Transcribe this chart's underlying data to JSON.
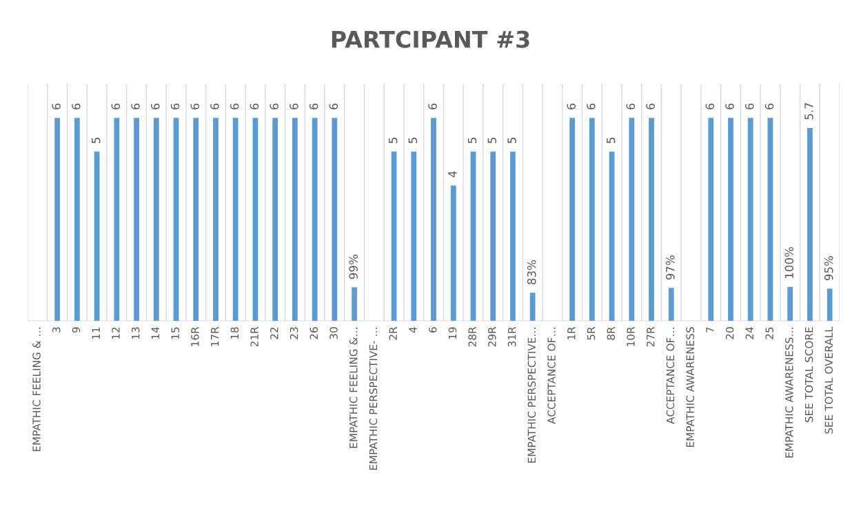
{
  "chart_data": {
    "type": "bar",
    "title": "PARTCIPANT #3",
    "categories": [
      "EMPATHIC FEELING & …",
      "3",
      "9",
      "11",
      "12",
      "13",
      "14",
      "15",
      "16R",
      "17R",
      "18",
      "21R",
      "22",
      "23",
      "26",
      "30",
      "EMPATHIC FEELING &…",
      "EMPATHIC PERSPECTIVE- …",
      "2R",
      "4",
      "6",
      "19",
      "28R",
      "29R",
      "31R",
      "EMPATHIC PERSPECTIVE…",
      "ACCEPTANCE OF…",
      "1R",
      "5R",
      "8R",
      "10R",
      "27R",
      "ACCEPTANCE OF…",
      "EMPATHIC AWARENESS",
      "7",
      "20",
      "24",
      "25",
      "EMPATHIC AWARENESS…",
      "SEE TOTAL SCORE",
      "SEE TOTAL OVERALL"
    ],
    "values": [
      null,
      6,
      6,
      5,
      6,
      6,
      6,
      6,
      6,
      6,
      6,
      6,
      6,
      6,
      6,
      6,
      0.99,
      null,
      5,
      5,
      6,
      4,
      5,
      5,
      5,
      0.83,
      null,
      6,
      6,
      5,
      6,
      6,
      0.97,
      null,
      6,
      6,
      6,
      6,
      1.0,
      5.7,
      0.95
    ],
    "value_labels": [
      null,
      "6",
      "6",
      "5",
      "6",
      "6",
      "6",
      "6",
      "6",
      "6",
      "6",
      "6",
      "6",
      "6",
      "6",
      "6",
      "99%",
      null,
      "5",
      "5",
      "6",
      "4",
      "5",
      "5",
      "5",
      "83%",
      null,
      "6",
      "6",
      "5",
      "6",
      "6",
      "97%",
      null,
      "6",
      "6",
      "6",
      "6",
      "100%",
      "5.7",
      "95%"
    ],
    "color": "#5b9bd5",
    "ylim": [
      0,
      7
    ],
    "tick_labels": "x",
    "grid": "x",
    "legend": false
  }
}
